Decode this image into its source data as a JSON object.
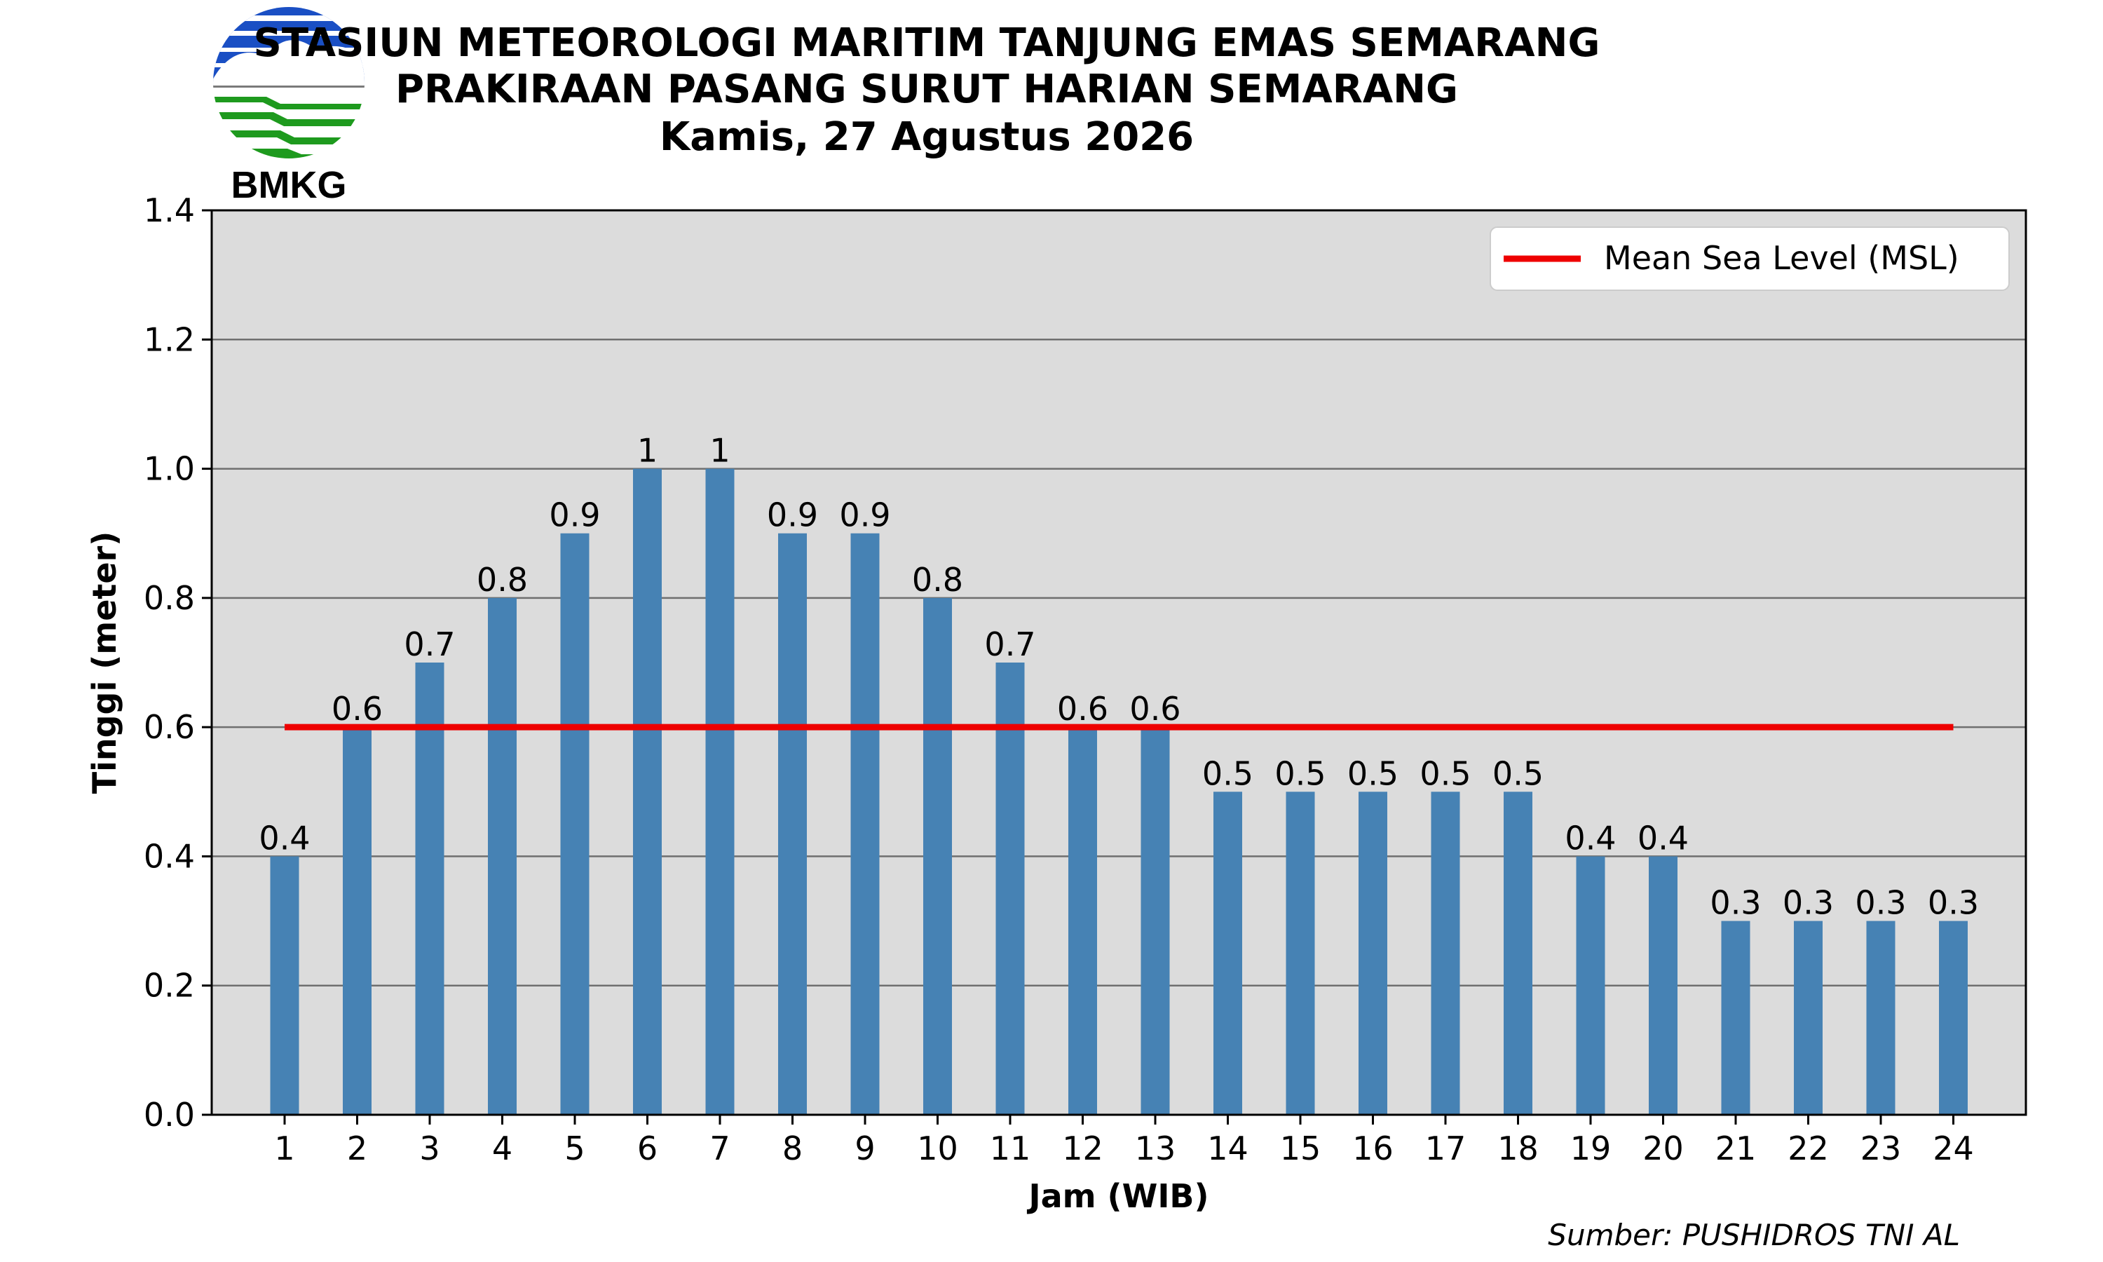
{
  "header": {
    "title_line1": "STASIUN METEOROLOGI MARITIM TANJUNG EMAS SEMARANG",
    "title_line2": "PRAKIRAAN PASANG SURUT HARIAN SEMARANG",
    "title_line3": "Kamis, 27 Agustus 2026"
  },
  "logo": {
    "text": "BMKG",
    "colors": {
      "blue": "#1a4fc4",
      "green": "#1e9a1e",
      "gray": "#7a7a7a"
    }
  },
  "source": "Sumber: PUSHIDROS TNI AL",
  "chart_data": {
    "type": "bar",
    "xlabel": "Jam (WIB)",
    "ylabel": "Tinggi (meter)",
    "categories": [
      "1",
      "2",
      "3",
      "4",
      "5",
      "6",
      "7",
      "8",
      "9",
      "10",
      "11",
      "12",
      "13",
      "14",
      "15",
      "16",
      "17",
      "18",
      "19",
      "20",
      "21",
      "22",
      "23",
      "24"
    ],
    "values": [
      0.4,
      0.6,
      0.7,
      0.8,
      0.9,
      1,
      1,
      0.9,
      0.9,
      0.8,
      0.7,
      0.6,
      0.6,
      0.5,
      0.5,
      0.5,
      0.5,
      0.5,
      0.4,
      0.4,
      0.3,
      0.3,
      0.3,
      0.3
    ],
    "value_labels": [
      "0.4",
      "0.6",
      "0.7",
      "0.8",
      "0.9",
      "1",
      "1",
      "0.9",
      "0.9",
      "0.8",
      "0.7",
      "0.6",
      "0.6",
      "0.5",
      "0.5",
      "0.5",
      "0.5",
      "0.5",
      "0.4",
      "0.4",
      "0.3",
      "0.3",
      "0.3",
      "0.3"
    ],
    "ylim": [
      0,
      1.4
    ],
    "yticks": [
      "0.0",
      "0.2",
      "0.4",
      "0.6",
      "0.8",
      "1.0",
      "1.2",
      "1.4"
    ],
    "ytick_values": [
      0,
      0.2,
      0.4,
      0.6,
      0.8,
      1.0,
      1.2,
      1.4
    ],
    "grid": "horizontal",
    "bar_color": "#4682b4",
    "background_color": "#dcdcdc",
    "reference_line": {
      "name": "Mean Sea Level (MSL)",
      "value": 0.6,
      "color": "#ee0000",
      "from_x": "1",
      "to_x": "24"
    },
    "legend": {
      "position": "top-right",
      "entries": [
        "Mean Sea Level (MSL)"
      ]
    }
  }
}
